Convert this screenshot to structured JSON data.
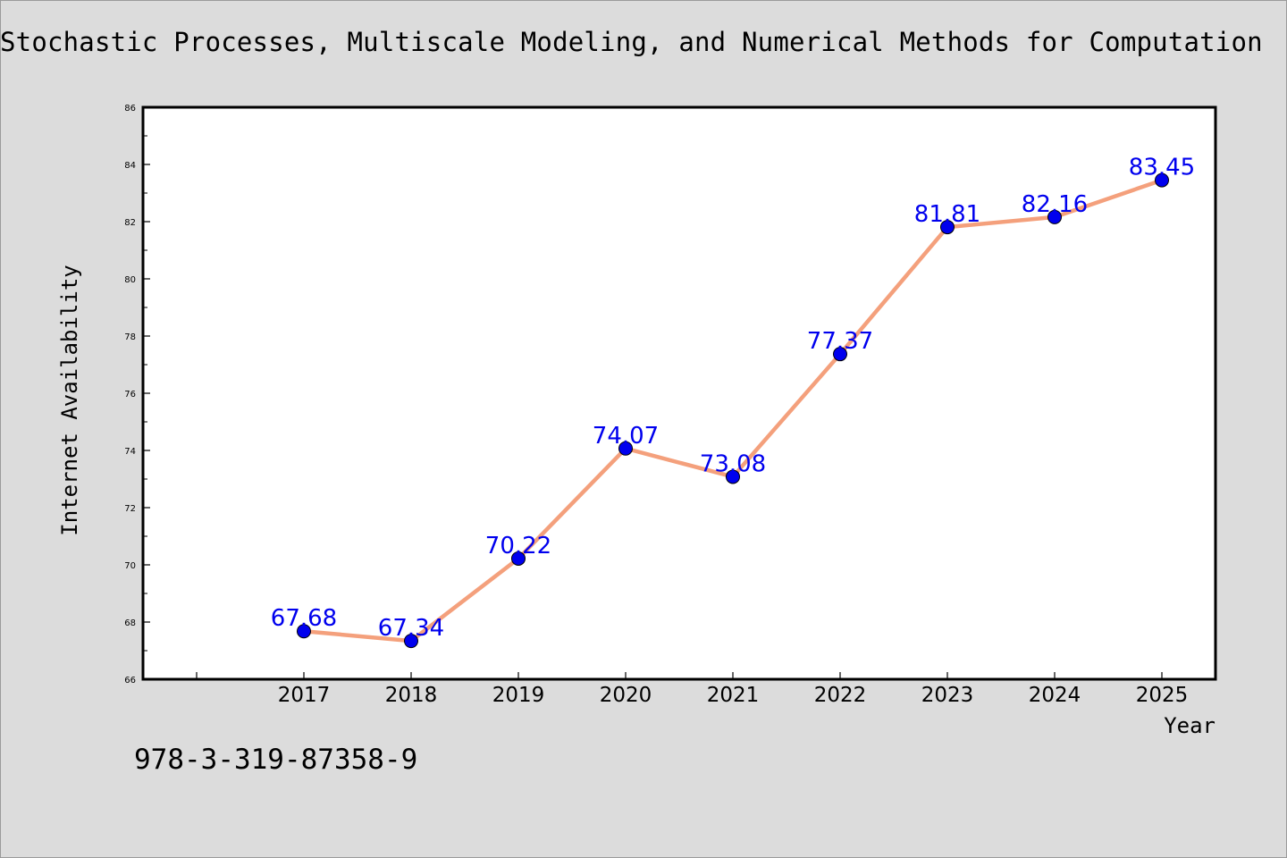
{
  "chart_data": {
    "type": "line",
    "title": "Stochastic Processes, Multiscale Modeling, and Numerical Methods for Computation",
    "xlabel": "Year",
    "ylabel": "Internet Availability",
    "categories": [
      "2017",
      "2018",
      "2019",
      "2020",
      "2021",
      "2022",
      "2023",
      "2024",
      "2025"
    ],
    "series": [
      {
        "values": [
          67.68,
          67.34,
          70.22,
          74.07,
          73.08,
          77.37,
          81.81,
          82.16,
          83.45
        ],
        "labels": [
          "67.68",
          "67.34",
          "70.22",
          "74.07",
          "73.08",
          "77.37",
          "81.81",
          "82.16",
          "83.45"
        ],
        "line_color": "#f4a07c",
        "marker_color": "#0000ee"
      }
    ],
    "ylim": [
      66,
      86
    ],
    "yticks": [
      "66",
      "68",
      "70",
      "72",
      "74",
      "76",
      "78",
      "80",
      "82",
      "84",
      "86"
    ],
    "grid": false,
    "label_color": "#0000ee"
  },
  "annotation": "978-3-319-87358-9"
}
